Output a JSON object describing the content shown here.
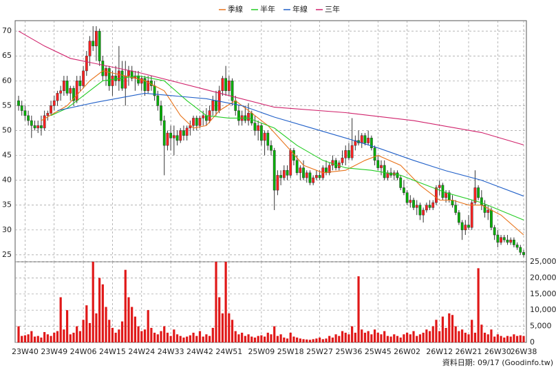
{
  "chart_data": {
    "type": "candlestick",
    "source": "資料日期: 09/17 (Goodinfo.tw)",
    "grid": true,
    "up_color": "#ff2020",
    "down_color": "#00b000",
    "wick_color": "#333333",
    "categories": [
      null,
      null,
      "23W40",
      null,
      null,
      null,
      null,
      null,
      null,
      null,
      null,
      "23W49",
      null,
      null,
      null,
      null,
      null,
      null,
      null,
      null,
      "24W06",
      null,
      null,
      null,
      null,
      null,
      null,
      null,
      null,
      "24W15",
      null,
      null,
      null,
      null,
      null,
      null,
      null,
      null,
      "24W24",
      null,
      null,
      null,
      null,
      null,
      null,
      null,
      null,
      "24W33",
      null,
      null,
      null,
      null,
      null,
      null,
      null,
      null,
      "24W42",
      null,
      null,
      null,
      null,
      null,
      null,
      null,
      null,
      "24W51",
      null,
      null,
      null,
      null,
      null,
      null,
      null,
      null,
      null,
      "25W09",
      null,
      null,
      null,
      null,
      null,
      null,
      null,
      null,
      "25W18",
      null,
      null,
      null,
      null,
      null,
      null,
      null,
      null,
      "25W27",
      null,
      null,
      null,
      null,
      null,
      null,
      null,
      null,
      "25W36",
      null,
      null,
      null,
      null,
      null,
      null,
      null,
      null,
      "25W45",
      null,
      null,
      null,
      null,
      null,
      null,
      null,
      null,
      "26W02",
      null,
      null,
      null,
      null,
      null,
      null,
      null,
      null,
      null,
      "26W12",
      null,
      null,
      null,
      null,
      null,
      null,
      null,
      null,
      "26W21",
      null,
      null,
      null,
      null,
      null,
      null,
      null,
      null,
      "26W30",
      null,
      null,
      null,
      null,
      null,
      null,
      null,
      "26W38"
    ],
    "ylim": [
      23.6,
      72.1
    ],
    "yticks": [
      25,
      30,
      35,
      40,
      45,
      50,
      55,
      60,
      65,
      70
    ],
    "ohlc": [
      [
        56,
        57,
        54,
        55
      ],
      [
        55,
        56,
        53,
        54
      ],
      [
        54,
        55,
        52,
        53
      ],
      [
        53,
        54,
        51,
        52
      ],
      [
        52,
        53,
        48.5,
        51
      ],
      [
        51,
        52,
        50,
        50.5
      ],
      [
        50.5,
        52,
        49.5,
        51
      ],
      [
        51,
        53,
        49,
        50.5
      ],
      [
        50.5,
        54,
        50,
        53
      ],
      [
        53,
        54,
        52,
        53.5
      ],
      [
        53.5,
        56,
        53,
        55
      ],
      [
        55,
        57,
        54,
        56
      ],
      [
        56,
        58,
        55,
        57.5
      ],
      [
        57.5,
        59,
        56,
        58
      ],
      [
        58,
        61,
        57,
        60
      ],
      [
        60,
        61,
        57,
        57.5
      ],
      [
        57.5,
        59,
        56,
        58.5
      ],
      [
        58.5,
        59,
        55,
        56
      ],
      [
        56,
        61,
        55.5,
        60
      ],
      [
        60,
        61,
        58,
        59
      ],
      [
        59,
        63,
        58.5,
        62
      ],
      [
        62,
        66,
        61,
        65
      ],
      [
        65,
        69,
        63,
        68
      ],
      [
        68,
        71,
        66,
        67
      ],
      [
        67,
        71,
        64,
        70
      ],
      [
        70,
        70.5,
        63,
        64
      ],
      [
        64,
        65,
        60,
        61
      ],
      [
        61,
        63,
        59,
        62.5
      ],
      [
        62.5,
        63,
        58,
        59
      ],
      [
        59,
        62,
        57,
        61
      ],
      [
        61,
        63,
        59,
        60
      ],
      [
        60,
        67,
        58,
        62
      ],
      [
        62,
        64,
        58,
        58.5
      ],
      [
        58.5,
        64,
        55,
        61
      ],
      [
        61,
        63,
        59,
        62
      ],
      [
        62,
        63,
        60,
        60.5
      ],
      [
        60.5,
        62,
        58,
        61
      ],
      [
        61,
        62,
        59,
        59.5
      ],
      [
        59.5,
        61,
        58,
        60.5
      ],
      [
        60.5,
        61,
        57,
        58
      ],
      [
        58,
        61,
        57.5,
        60
      ],
      [
        60,
        61,
        58,
        59
      ],
      [
        59,
        60,
        56,
        57
      ],
      [
        57,
        58,
        54,
        55
      ],
      [
        55,
        56,
        51,
        52
      ],
      [
        52,
        53,
        41,
        47
      ],
      [
        47,
        50,
        46,
        49.5
      ],
      [
        49.5,
        51,
        46,
        48.5
      ],
      [
        48.5,
        51,
        45,
        49
      ],
      [
        49,
        50,
        47,
        48
      ],
      [
        48,
        50.5,
        47.5,
        50
      ],
      [
        50,
        51,
        48,
        49
      ],
      [
        49,
        51,
        48,
        50.5
      ],
      [
        50.5,
        52,
        49,
        51
      ],
      [
        51,
        53,
        50,
        52.5
      ],
      [
        52.5,
        53,
        50,
        51
      ],
      [
        51,
        53,
        50.5,
        52.5
      ],
      [
        52.5,
        54,
        51,
        53
      ],
      [
        53,
        54.5,
        51,
        52
      ],
      [
        52,
        55,
        51.5,
        54
      ],
      [
        54,
        57,
        53,
        56
      ],
      [
        56,
        58,
        53,
        54
      ],
      [
        54,
        59,
        53.5,
        58
      ],
      [
        58,
        61,
        57,
        60.5
      ],
      [
        60.5,
        63,
        57,
        58
      ],
      [
        58,
        61,
        57,
        60
      ],
      [
        60,
        60.5,
        55,
        56
      ],
      [
        56,
        57,
        53,
        54
      ],
      [
        54,
        55,
        51,
        52
      ],
      [
        52,
        54,
        51,
        53
      ],
      [
        53,
        55,
        51.5,
        52
      ],
      [
        52,
        55.5,
        51,
        53.5
      ],
      [
        53.5,
        54,
        51,
        51.5
      ],
      [
        51.5,
        53,
        49,
        50
      ],
      [
        50,
        52,
        48,
        51
      ],
      [
        51,
        51.5,
        47,
        48
      ],
      [
        48,
        50,
        45,
        49.5
      ],
      [
        49.5,
        50,
        46,
        47
      ],
      [
        47,
        48,
        45,
        46
      ],
      [
        46,
        46.5,
        34,
        38
      ],
      [
        38,
        42,
        37,
        41
      ],
      [
        41,
        42,
        39,
        40.5
      ],
      [
        40.5,
        43,
        40,
        42
      ],
      [
        42,
        43,
        40,
        41
      ],
      [
        41,
        46.5,
        40.5,
        46
      ],
      [
        46,
        46.5,
        43,
        44
      ],
      [
        44,
        45,
        41,
        41.5
      ],
      [
        41.5,
        43,
        40,
        42.5
      ],
      [
        42.5,
        44,
        40,
        40.5
      ],
      [
        40.5,
        42,
        39.5,
        41.5
      ],
      [
        41.5,
        42,
        39,
        39.5
      ],
      [
        39.5,
        41,
        39,
        40.5
      ],
      [
        40.5,
        42,
        40,
        41
      ],
      [
        41,
        42,
        40,
        40.5
      ],
      [
        40.5,
        43,
        40,
        42.5
      ],
      [
        42.5,
        44,
        41,
        41.5
      ],
      [
        41.5,
        43.5,
        41,
        43
      ],
      [
        43,
        45,
        42,
        44
      ],
      [
        44,
        44.5,
        42,
        42.5
      ],
      [
        42.5,
        44,
        42,
        43.5
      ],
      [
        43.5,
        46,
        43,
        44.5
      ],
      [
        44.5,
        47,
        43,
        46
      ],
      [
        46,
        47.5,
        44,
        44.5
      ],
      [
        44.5,
        52.5,
        44,
        47
      ],
      [
        47,
        49,
        46,
        48
      ],
      [
        48,
        50,
        47,
        47.5
      ],
      [
        47.5,
        49.5,
        46.5,
        49
      ],
      [
        49,
        49.5,
        47,
        47.5
      ],
      [
        47.5,
        50,
        47,
        48.5
      ],
      [
        48.5,
        49,
        46,
        46.5
      ],
      [
        46.5,
        47,
        43,
        44
      ],
      [
        44,
        45,
        42,
        42.5
      ],
      [
        42.5,
        44,
        41,
        43
      ],
      [
        43,
        44,
        40,
        40.5
      ],
      [
        40.5,
        42,
        40,
        41.5
      ],
      [
        41.5,
        42.5,
        40.5,
        41
      ],
      [
        41,
        42,
        40,
        41.5
      ],
      [
        41.5,
        42,
        40,
        40.5
      ],
      [
        40.5,
        41,
        38,
        38.5
      ],
      [
        38.5,
        40,
        37,
        37.5
      ],
      [
        37.5,
        38,
        35,
        35.5
      ],
      [
        35.5,
        37,
        34.5,
        36
      ],
      [
        36,
        36.5,
        34,
        34.5
      ],
      [
        34.5,
        36,
        33,
        35
      ],
      [
        35,
        35.5,
        32,
        33
      ],
      [
        33,
        34.5,
        31.5,
        34
      ],
      [
        34,
        35.5,
        33.5,
        35
      ],
      [
        35,
        36,
        34,
        34.5
      ],
      [
        34.5,
        36,
        34,
        35.5
      ],
      [
        35.5,
        39,
        35,
        38.5
      ],
      [
        38.5,
        40,
        37,
        39
      ],
      [
        39,
        39.5,
        36,
        36.5
      ],
      [
        36.5,
        38,
        35.5,
        37.5
      ],
      [
        37.5,
        38,
        35.5,
        36
      ],
      [
        36,
        37,
        34.5,
        35
      ],
      [
        35,
        36,
        33,
        33.5
      ],
      [
        33.5,
        34,
        31,
        31.5
      ],
      [
        31.5,
        32,
        28,
        30
      ],
      [
        30,
        32,
        29,
        31
      ],
      [
        31,
        33,
        30,
        30.5
      ],
      [
        30.5,
        36,
        30,
        35.5
      ],
      [
        35.5,
        42,
        35,
        38.5
      ],
      [
        38.5,
        39,
        36,
        36.5
      ],
      [
        36.5,
        38,
        34,
        35
      ],
      [
        35,
        36,
        32.5,
        33.5
      ],
      [
        33.5,
        35,
        32,
        34
      ],
      [
        34,
        34.5,
        30,
        30.5
      ],
      [
        30.5,
        31,
        28,
        29
      ],
      [
        29,
        30,
        26.5,
        27.5
      ],
      [
        27.5,
        29,
        27,
        28.5
      ],
      [
        28.5,
        29,
        27.5,
        28
      ],
      [
        28,
        29,
        27,
        27.5
      ],
      [
        27.5,
        28.5,
        27,
        28
      ],
      [
        28,
        28.5,
        26.5,
        27
      ],
      [
        27,
        27.5,
        26,
        26.5
      ],
      [
        26.5,
        27,
        25,
        25.5
      ],
      [
        25.5,
        26,
        24.5,
        25
      ]
    ],
    "series": [
      {
        "name": "季線",
        "color": "#e8731a",
        "x": [
          7,
          15,
          22,
          26,
          33,
          39,
          45,
          50,
          54,
          58,
          62,
          67,
          71,
          77,
          84,
          88,
          94,
          101,
          107,
          111,
          118,
          124,
          130,
          134,
          139,
          143,
          149,
          156
        ],
        "values": [
          52,
          55,
          60,
          62,
          61,
          60,
          58,
          53,
          50.5,
          51,
          54,
          56,
          54,
          51,
          46,
          43,
          41.5,
          42,
          44,
          45,
          43,
          39,
          36,
          36,
          35,
          35,
          33,
          29
        ]
      },
      {
        "name": "半年",
        "color": "#22cc22",
        "x": [
          10,
          15,
          26,
          37,
          45,
          52,
          58,
          65,
          71,
          79,
          86,
          94,
          101,
          109,
          118,
          126,
          132,
          143,
          156
        ],
        "values": [
          53,
          54.5,
          60,
          61,
          60,
          56,
          53,
          52.5,
          52.5,
          50.5,
          47,
          44,
          42.5,
          42,
          41,
          39,
          37.5,
          35.5,
          32
        ]
      },
      {
        "name": "年線",
        "color": "#1f5fc8",
        "x": [
          12,
          24,
          39,
          58,
          69,
          79,
          90,
          101,
          111,
          122,
          132,
          143,
          156
        ],
        "values": [
          54,
          55.7,
          57.5,
          56.4,
          55,
          52.7,
          50.6,
          48.5,
          46.5,
          44,
          41.9,
          40,
          36.8
        ]
      },
      {
        "name": "三年",
        "color": "#d0206a",
        "x": [
          0,
          8,
          16,
          37,
          58,
          79,
          101,
          122,
          143,
          156
        ],
        "values": [
          70,
          67,
          64.5,
          61.7,
          58.2,
          54.7,
          53.6,
          52,
          49.6,
          47.1
        ]
      }
    ],
    "volume": {
      "color": "#e01818",
      "ylim": [
        0,
        25000
      ],
      "yticks": [
        0,
        {
          "value": 5000,
          "label": "5,000"
        },
        {
          "value": 10000,
          "label": "10,000"
        },
        {
          "value": 15000,
          "label": "15,000"
        },
        {
          "value": 20000,
          "label": "20,000"
        },
        {
          "value": 25000,
          "label": "25,000"
        }
      ],
      "values": [
        5000,
        2000,
        2200,
        2500,
        3500,
        1800,
        2000,
        1500,
        3200,
        2500,
        2000,
        3000,
        3500,
        14000,
        4000,
        10000,
        2500,
        3000,
        5000,
        3500,
        7000,
        11500,
        6000,
        25000,
        9000,
        20000,
        18000,
        11000,
        7000,
        4500,
        3000,
        4000,
        6500,
        22500,
        14000,
        11000,
        8000,
        5000,
        3500,
        4000,
        10000,
        4500,
        3000,
        2500,
        3500,
        5000,
        3000,
        2000,
        4000,
        2500,
        2000,
        1500,
        1800,
        2200,
        3000,
        2000,
        3500,
        1800,
        2500,
        2000,
        4500,
        25000,
        14000,
        9000,
        25000,
        9000,
        7000,
        3500,
        2500,
        3000,
        2000,
        2500,
        1800,
        1500,
        2000,
        2200,
        1800,
        3000,
        2500,
        5000,
        2000,
        2500,
        1500,
        1200,
        3000,
        1800,
        1500,
        1200,
        1000,
        900,
        800,
        1000,
        1200,
        1500,
        1000,
        1200,
        2000,
        1500,
        2500,
        2000,
        3500,
        3000,
        2500,
        5000,
        3000,
        20500,
        4000,
        3000,
        3500,
        2500,
        4000,
        3000,
        2500,
        3500,
        2000,
        1800,
        2500,
        2000,
        1500,
        2500,
        3000,
        2500,
        3500,
        2000,
        2500,
        3000,
        4000,
        3500,
        5000,
        7000,
        3500,
        8000,
        4500,
        9000,
        8500,
        5000,
        3500,
        4000,
        3000,
        2500,
        7000,
        3000,
        23000,
        5500,
        3000,
        2500,
        4000,
        1800,
        2500,
        2000,
        1500,
        2000,
        1800,
        2500,
        2000,
        2200,
        2000
      ]
    }
  }
}
